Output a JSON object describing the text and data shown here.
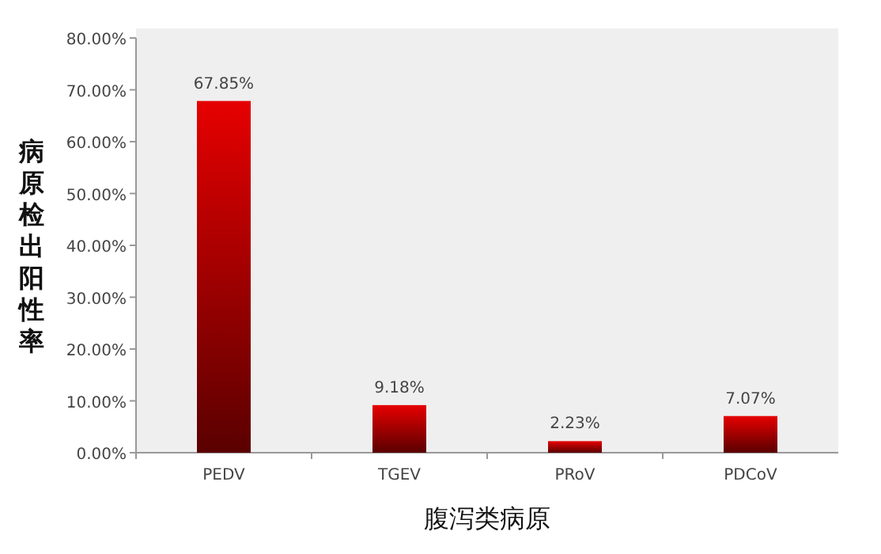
{
  "chart_data": {
    "type": "bar",
    "xlabel": "腹泻类病原",
    "ylabel": "病原检出阳性率",
    "categories": [
      "PEDV",
      "TGEV",
      "PRoV",
      "PDCoV"
    ],
    "values": [
      67.85,
      9.18,
      2.23,
      7.07
    ],
    "value_labels": [
      "67.85%",
      "9.18%",
      "2.23%",
      "7.07%"
    ],
    "color": "#e60000",
    "ylim": [
      0,
      80
    ],
    "yticks": [
      {
        "value": 0,
        "label": "0.00%"
      },
      {
        "value": 10,
        "label": "10.00%"
      },
      {
        "value": 20,
        "label": "20.00%"
      },
      {
        "value": 30,
        "label": "30.00%"
      },
      {
        "value": 40,
        "label": "40.00%"
      },
      {
        "value": 50,
        "label": "50.00%"
      },
      {
        "value": 60,
        "label": "60.00%"
      },
      {
        "value": 70,
        "label": "70.00%"
      },
      {
        "value": 80,
        "label": "80.00%"
      }
    ],
    "grid": false
  }
}
